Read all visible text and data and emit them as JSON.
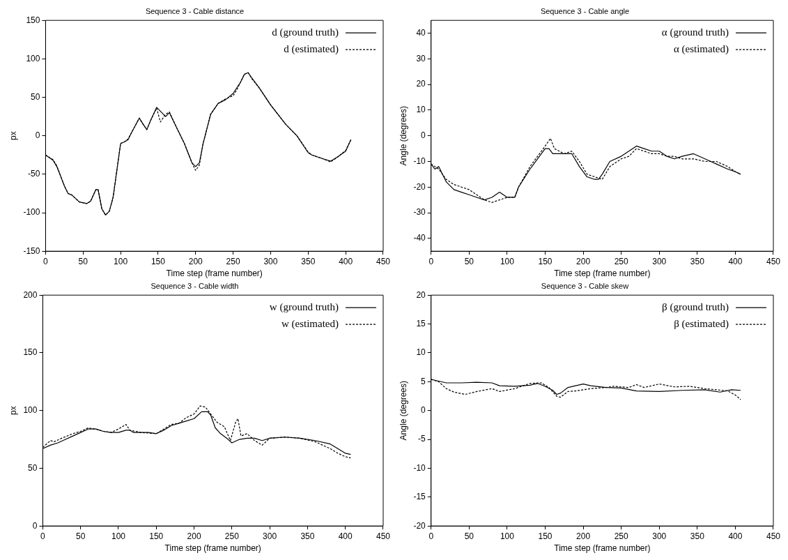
{
  "chart_data": [
    {
      "type": "line",
      "title": "Sequence 3 - Cable distance",
      "xlabel": "Time step (frame number)",
      "ylabel": "px",
      "xlim": [
        0,
        450
      ],
      "xticks": [
        0,
        50,
        100,
        150,
        200,
        250,
        300,
        350,
        400,
        450
      ],
      "ylim": [
        -150,
        150
      ],
      "yticks": [
        -150,
        -100,
        -50,
        0,
        50,
        100,
        150
      ],
      "grid": false,
      "legend": "top right",
      "marker": "none",
      "series": [
        {
          "name": "d (ground truth)",
          "color": "#000000",
          "line_style": "solid",
          "x": [
            0,
            10,
            15,
            25,
            30,
            35,
            45,
            55,
            60,
            67,
            70,
            75,
            80,
            85,
            90,
            100,
            105,
            110,
            115,
            125,
            130,
            135,
            140,
            148,
            155,
            160,
            165,
            175,
            185,
            195,
            200,
            205,
            210,
            220,
            230,
            240,
            250,
            260,
            265,
            270,
            275,
            285,
            300,
            320,
            335,
            350,
            355,
            370,
            380,
            390,
            400,
            407
          ],
          "values": [
            -25,
            -32,
            -40,
            -65,
            -75,
            -77,
            -86,
            -88,
            -85,
            -70,
            -70,
            -95,
            -103,
            -98,
            -80,
            -10,
            -8,
            -5,
            5,
            23,
            15,
            8,
            20,
            37,
            30,
            25,
            30,
            10,
            -10,
            -35,
            -40,
            -35,
            -10,
            28,
            42,
            47,
            55,
            70,
            80,
            82,
            75,
            62,
            40,
            15,
            0,
            -22,
            -25,
            -30,
            -33,
            -27,
            -20,
            -5
          ]
        },
        {
          "name": "d (estimated)",
          "color": "#000000",
          "line_style": "dashed",
          "x": [
            0,
            10,
            15,
            25,
            30,
            35,
            45,
            55,
            60,
            67,
            70,
            75,
            80,
            85,
            90,
            100,
            105,
            110,
            115,
            125,
            130,
            135,
            140,
            148,
            153,
            160,
            165,
            175,
            185,
            195,
            200,
            205,
            210,
            220,
            230,
            240,
            250,
            255,
            265,
            270,
            275,
            285,
            300,
            320,
            335,
            350,
            355,
            370,
            380,
            390,
            400,
            407
          ],
          "values": [
            -25,
            -31,
            -39,
            -65,
            -75,
            -77,
            -86,
            -88,
            -85,
            -70,
            -70,
            -95,
            -103,
            -98,
            -80,
            -10,
            -8,
            -4,
            5,
            23,
            15,
            8,
            20,
            36,
            18,
            28,
            31,
            10,
            -10,
            -35,
            -45,
            -38,
            -10,
            28,
            42,
            48,
            52,
            60,
            80,
            82,
            74,
            62,
            40,
            15,
            0,
            -21,
            -25,
            -30,
            -34,
            -27,
            -19,
            -5
          ]
        }
      ]
    },
    {
      "type": "line",
      "title": "Sequence 3 - Cable angle",
      "xlabel": "Time step (frame number)",
      "ylabel": "Angle (degrees)",
      "xlim": [
        0,
        450
      ],
      "xticks": [
        0,
        50,
        100,
        150,
        200,
        250,
        300,
        350,
        400,
        450
      ],
      "ylim": [
        -45,
        45
      ],
      "yticks": [
        -40,
        -30,
        -20,
        -10,
        0,
        10,
        20,
        30,
        40
      ],
      "grid": false,
      "legend": "top right",
      "marker": "none",
      "series": [
        {
          "name": "α (ground truth)",
          "color": "#000000",
          "line_style": "solid",
          "x": [
            0,
            5,
            10,
            20,
            30,
            40,
            50,
            60,
            70,
            80,
            90,
            95,
            100,
            110,
            115,
            130,
            145,
            150,
            155,
            160,
            175,
            185,
            195,
            205,
            215,
            220,
            225,
            235,
            250,
            260,
            270,
            280,
            290,
            300,
            310,
            320,
            330,
            345,
            360,
            375,
            390,
            400,
            407
          ],
          "values": [
            -11,
            -13,
            -12,
            -18,
            -21,
            -22,
            -23,
            -24,
            -25,
            -24,
            -22,
            -23,
            -24,
            -24,
            -20,
            -13,
            -7,
            -5,
            -5,
            -7,
            -7,
            -7,
            -12,
            -16,
            -17,
            -17,
            -15,
            -10,
            -8,
            -6,
            -4,
            -5,
            -6,
            -6,
            -8,
            -9,
            -8,
            -7,
            -9,
            -11,
            -13,
            -14,
            -15
          ]
        },
        {
          "name": "α (estimated)",
          "color": "#000000",
          "line_style": "dashed",
          "x": [
            0,
            10,
            20,
            30,
            40,
            50,
            60,
            70,
            80,
            90,
            100,
            110,
            115,
            130,
            140,
            150,
            157,
            162,
            175,
            185,
            195,
            205,
            215,
            225,
            235,
            250,
            260,
            270,
            280,
            290,
            300,
            310,
            320,
            330,
            345,
            360,
            375,
            390,
            400,
            407
          ],
          "values": [
            -11,
            -13,
            -17,
            -19,
            -20,
            -21,
            -23,
            -25,
            -26,
            -25,
            -24,
            -24,
            -20,
            -12,
            -8,
            -4,
            -1,
            -5,
            -7,
            -6,
            -10,
            -15,
            -16,
            -17,
            -12,
            -9,
            -8,
            -5,
            -6,
            -7,
            -7,
            -8,
            -8,
            -9,
            -9,
            -10,
            -10,
            -12,
            -14,
            -15
          ]
        }
      ]
    },
    {
      "type": "line",
      "title": "Sequence 3 - Cable width",
      "xlabel": "Time step (frame number)",
      "ylabel": "px",
      "xlim": [
        0,
        450
      ],
      "xticks": [
        0,
        50,
        100,
        150,
        200,
        250,
        300,
        350,
        400,
        450
      ],
      "ylim": [
        0,
        200
      ],
      "yticks": [
        0,
        50,
        100,
        150,
        200
      ],
      "grid": false,
      "legend": "top right",
      "marker": "none",
      "series": [
        {
          "name": "w (ground truth)",
          "color": "#000000",
          "line_style": "solid",
          "x": [
            0,
            10,
            20,
            30,
            40,
            50,
            60,
            70,
            80,
            90,
            100,
            110,
            115,
            120,
            130,
            140,
            150,
            160,
            170,
            180,
            190,
            200,
            210,
            218,
            222,
            228,
            235,
            245,
            250,
            260,
            270,
            280,
            290,
            300,
            320,
            340,
            360,
            380,
            390,
            400,
            407
          ],
          "values": [
            67,
            70,
            72,
            75,
            78,
            81,
            84,
            84,
            82,
            81,
            81,
            83,
            83,
            81,
            81,
            81,
            80,
            83,
            87,
            89,
            91,
            93,
            99,
            99,
            96,
            85,
            80,
            75,
            72,
            75,
            76,
            76,
            74,
            76,
            77,
            76,
            74,
            71,
            67,
            63,
            62
          ]
        },
        {
          "name": "w (estimated)",
          "color": "#000000",
          "line_style": "dashed",
          "x": [
            0,
            10,
            15,
            25,
            40,
            50,
            60,
            70,
            80,
            90,
            100,
            110,
            115,
            130,
            150,
            160,
            170,
            180,
            190,
            200,
            208,
            215,
            222,
            230,
            240,
            248,
            255,
            258,
            262,
            270,
            280,
            290,
            300,
            320,
            340,
            360,
            380,
            390,
            400,
            407
          ],
          "values": [
            68,
            74,
            73,
            76,
            80,
            82,
            85,
            84,
            82,
            81,
            84,
            88,
            83,
            81,
            80,
            84,
            88,
            89,
            94,
            97,
            104,
            103,
            97,
            90,
            86,
            74,
            90,
            93,
            78,
            80,
            74,
            70,
            76,
            77,
            76,
            73,
            67,
            63,
            60,
            59
          ]
        }
      ]
    },
    {
      "type": "line",
      "title": "Sequence 3 - Cable skew",
      "xlabel": "Time step (frame number)",
      "ylabel": "Angle (degrees)",
      "xlim": [
        0,
        450
      ],
      "xticks": [
        0,
        50,
        100,
        150,
        200,
        250,
        300,
        350,
        400,
        450
      ],
      "ylim": [
        -20,
        20
      ],
      "yticks": [
        -20,
        -15,
        -10,
        -5,
        0,
        5,
        10,
        15,
        20
      ],
      "grid": false,
      "legend": "top right",
      "marker": "none",
      "series": [
        {
          "name": "β (ground truth)",
          "color": "#000000",
          "line_style": "solid",
          "x": [
            0,
            10,
            20,
            40,
            60,
            80,
            90,
            110,
            130,
            140,
            150,
            160,
            165,
            170,
            180,
            200,
            210,
            230,
            250,
            270,
            300,
            330,
            360,
            380,
            395,
            407
          ],
          "values": [
            5.4,
            5.1,
            4.8,
            4.8,
            4.9,
            4.8,
            4.3,
            4.2,
            4.4,
            4.7,
            4.2,
            3.5,
            2.8,
            3.0,
            4.0,
            4.6,
            4.3,
            4.0,
            3.9,
            3.4,
            3.3,
            3.5,
            3.6,
            3.2,
            3.6,
            3.5
          ]
        },
        {
          "name": "β (estimated)",
          "color": "#000000",
          "line_style": "dashed",
          "x": [
            0,
            10,
            20,
            30,
            45,
            60,
            80,
            90,
            110,
            130,
            145,
            155,
            165,
            170,
            180,
            190,
            210,
            230,
            240,
            260,
            270,
            280,
            300,
            320,
            340,
            360,
            375,
            390,
            400,
            407
          ],
          "values": [
            5.4,
            5.0,
            3.8,
            3.2,
            2.8,
            3.3,
            3.8,
            3.3,
            3.8,
            4.7,
            4.8,
            4.0,
            2.5,
            2.3,
            3.3,
            3.4,
            3.8,
            4.0,
            4.2,
            4.0,
            4.5,
            4.0,
            4.6,
            4.1,
            4.2,
            3.8,
            3.6,
            3.4,
            2.7,
            1.9
          ]
        }
      ]
    }
  ]
}
